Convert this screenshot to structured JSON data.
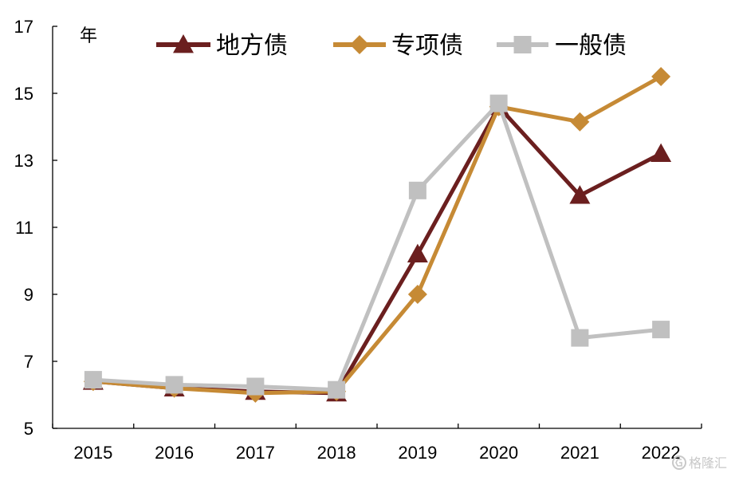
{
  "chart_data": {
    "type": "line",
    "title": "",
    "xlabel": "",
    "ylabel": "",
    "y_unit": "年",
    "categories": [
      "2015",
      "2016",
      "2017",
      "2018",
      "2019",
      "2020",
      "2021",
      "2022"
    ],
    "ylim": [
      5,
      17
    ],
    "yticks": [
      "5",
      "7",
      "9",
      "11",
      "13",
      "15",
      "17"
    ],
    "grid": false,
    "legend_position": "top",
    "series": [
      {
        "name": "地方债",
        "color": "#6b1f1f",
        "marker": "triangle",
        "values": [
          6.4,
          6.2,
          6.1,
          6.05,
          10.2,
          14.6,
          11.95,
          13.2
        ]
      },
      {
        "name": "专项债",
        "color": "#c68a35",
        "marker": "diamond",
        "values": [
          6.4,
          6.2,
          6.05,
          6.1,
          9.0,
          14.6,
          14.15,
          15.5
        ]
      },
      {
        "name": "一般债",
        "color": "#c0c0c0",
        "marker": "square",
        "values": [
          6.45,
          6.3,
          6.25,
          6.15,
          12.1,
          14.7,
          7.7,
          7.95
        ]
      }
    ]
  },
  "watermark": {
    "icon": "gelonghui-logo-icon",
    "text": "格隆汇"
  }
}
